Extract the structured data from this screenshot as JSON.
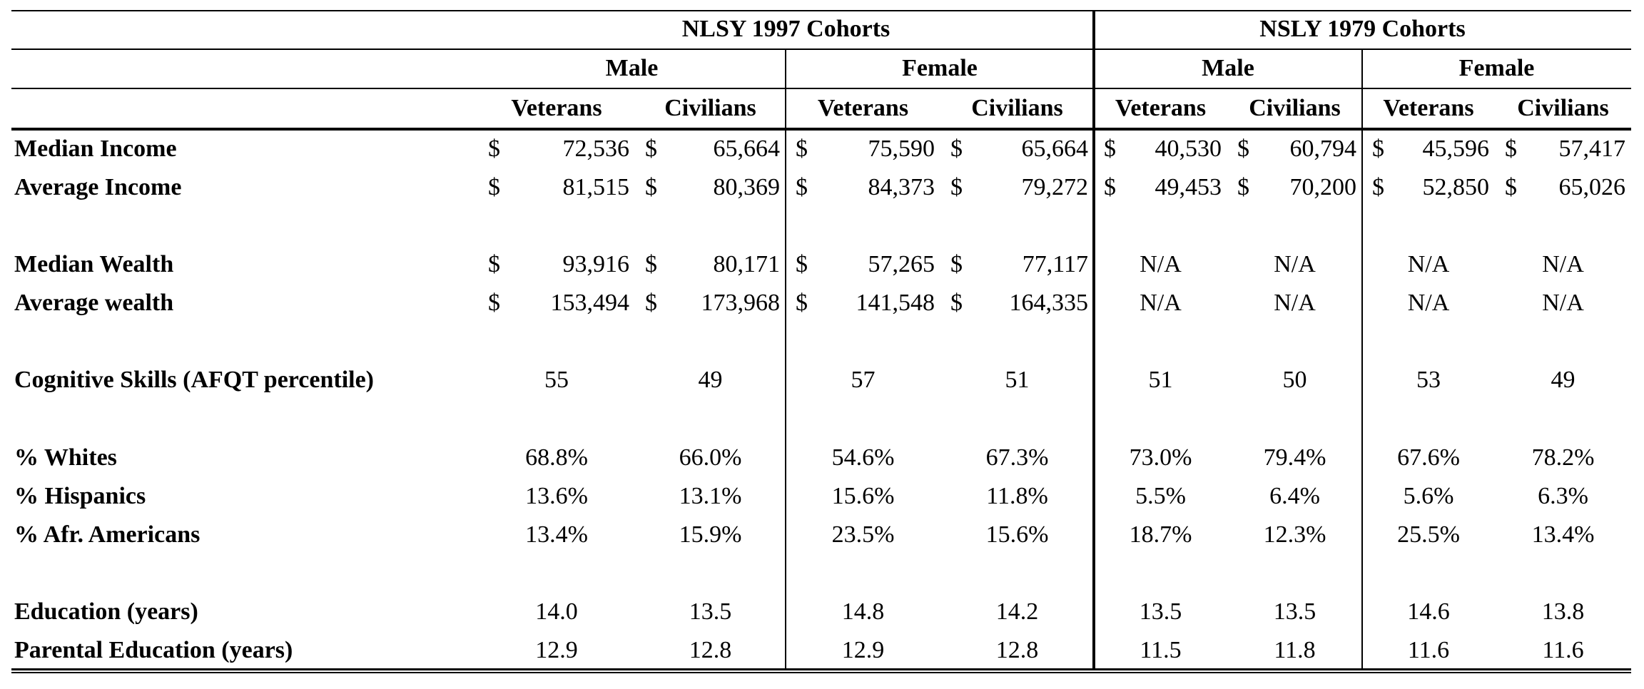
{
  "table": {
    "groups": [
      {
        "label": "NLSY 1997 Cohorts",
        "sexes": [
          "Male",
          "Female"
        ]
      },
      {
        "label": "NSLY 1979 Cohorts",
        "sexes": [
          "Male",
          "Female"
        ]
      }
    ],
    "subcolumns": [
      "Veterans",
      "Civilians",
      "Veterans",
      "Civilians",
      "Veterans",
      "Civilians",
      "Veterans",
      "Civilians"
    ],
    "currency_symbol": "$",
    "rows": [
      {
        "label": "Median Income",
        "type": "money",
        "values": [
          "72,536",
          "65,664",
          "75,590",
          "65,664",
          "40,530",
          "60,794",
          "45,596",
          "57,417"
        ]
      },
      {
        "label": "Average Income",
        "type": "money",
        "values": [
          "81,515",
          "80,369",
          "84,373",
          "79,272",
          "49,453",
          "70,200",
          "52,850",
          "65,026"
        ]
      },
      {
        "label": "Median Wealth",
        "type": "money",
        "values": [
          "93,916",
          "80,171",
          "57,265",
          "77,117",
          "N/A",
          "N/A",
          "N/A",
          "N/A"
        ]
      },
      {
        "label": "Average wealth",
        "type": "money",
        "values": [
          "153,494",
          "173,968",
          "141,548",
          "164,335",
          "N/A",
          "N/A",
          "N/A",
          "N/A"
        ]
      },
      {
        "label": "Cognitive Skills (AFQT percentile)",
        "type": "num",
        "values": [
          "55",
          "49",
          "57",
          "51",
          "51",
          "50",
          "53",
          "49"
        ]
      },
      {
        "label": "% Whites",
        "type": "num",
        "values": [
          "68.8%",
          "66.0%",
          "54.6%",
          "67.3%",
          "73.0%",
          "79.4%",
          "67.6%",
          "78.2%"
        ]
      },
      {
        "label": "% Hispanics",
        "type": "num",
        "values": [
          "13.6%",
          "13.1%",
          "15.6%",
          "11.8%",
          "5.5%",
          "6.4%",
          "5.6%",
          "6.3%"
        ]
      },
      {
        "label": "% Afr. Americans",
        "type": "num",
        "values": [
          "13.4%",
          "15.9%",
          "23.5%",
          "15.6%",
          "18.7%",
          "12.3%",
          "25.5%",
          "13.4%"
        ]
      },
      {
        "label": "Education (years)",
        "type": "num",
        "values": [
          "14.0",
          "13.5",
          "14.8",
          "14.2",
          "13.5",
          "13.5",
          "14.6",
          "13.8"
        ]
      },
      {
        "label": "Parental Education (years)",
        "type": "num",
        "values": [
          "12.9",
          "12.8",
          "12.9",
          "12.8",
          "11.5",
          "11.8",
          "11.6",
          "11.6"
        ]
      }
    ]
  }
}
